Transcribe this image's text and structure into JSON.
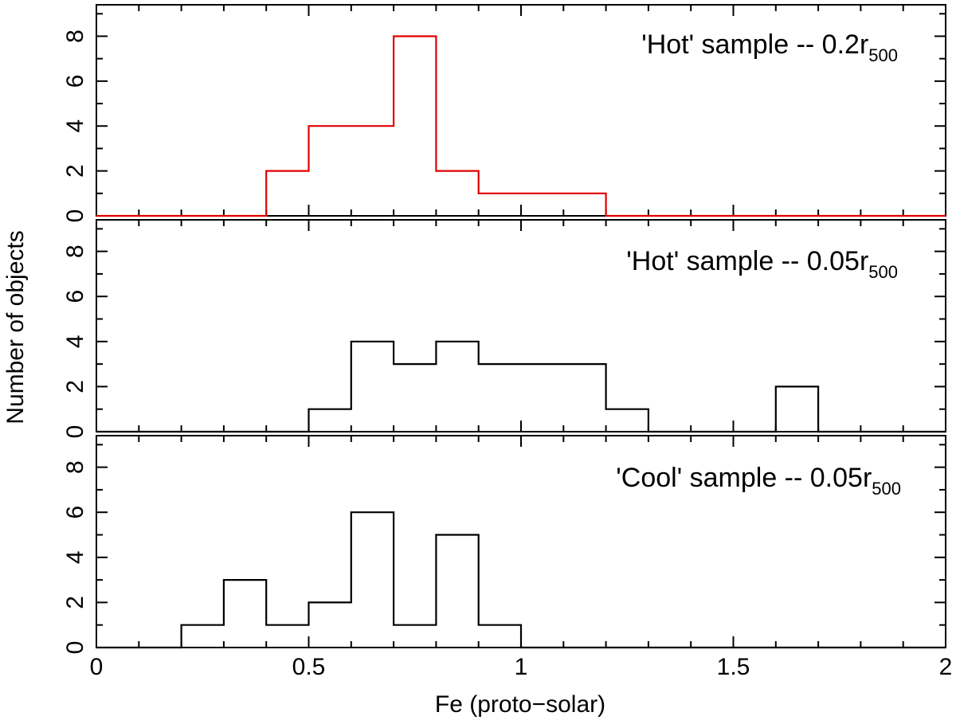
{
  "chart_data": {
    "type": "histogram",
    "xlabel": "Fe (proto−solar)",
    "ylabel": "Number of objects",
    "xlim": [
      0,
      2
    ],
    "ylim": [
      0,
      9.4
    ],
    "bin_width": 0.1,
    "bin_edges": [
      0,
      0.1,
      0.2,
      0.3,
      0.4,
      0.5,
      0.6,
      0.7,
      0.8,
      0.9,
      1.0,
      1.1,
      1.2,
      1.3,
      1.4,
      1.5,
      1.6,
      1.7,
      1.8,
      1.9,
      2.0
    ],
    "x_tick_labels": [
      "0",
      "0.5",
      "1",
      "1.5",
      "2"
    ],
    "x_tick_values": [
      0,
      0.5,
      1,
      1.5,
      2
    ],
    "y_tick_labels": [
      "0",
      "2",
      "4",
      "6",
      "8"
    ],
    "y_tick_values": [
      0,
      2,
      4,
      6,
      8
    ],
    "panels": [
      {
        "title_main": "'Hot' sample -- 0.2r",
        "title_sub": "500",
        "color": "#e00000",
        "counts": [
          0,
          0,
          0,
          0,
          2,
          4,
          4,
          8,
          2,
          1,
          1,
          1,
          0,
          0,
          0,
          0,
          0,
          0,
          0,
          0
        ]
      },
      {
        "title_main": "'Hot' sample -- 0.05r",
        "title_sub": "500",
        "color": "#000000",
        "counts": [
          0,
          0,
          0,
          0,
          0,
          1,
          4,
          3,
          4,
          3,
          3,
          3,
          1,
          0,
          0,
          0,
          2,
          0,
          0,
          0
        ]
      },
      {
        "title_main": "'Cool' sample -- 0.05r",
        "title_sub": "500",
        "color": "#000000",
        "counts": [
          0,
          0,
          1,
          3,
          1,
          2,
          6,
          1,
          5,
          1,
          0,
          0,
          0,
          0,
          0,
          0,
          0,
          0,
          0,
          0
        ]
      }
    ]
  }
}
